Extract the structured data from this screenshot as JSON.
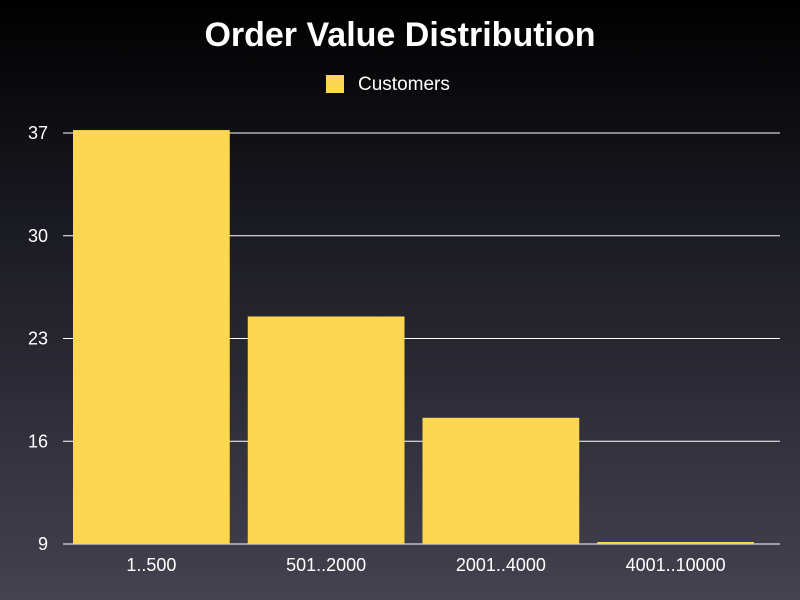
{
  "chart_data": {
    "type": "bar",
    "title": "Order Value Distribution",
    "categories": [
      "1..500",
      "501..2000",
      "2001..4000",
      "4001..10000"
    ],
    "series": [
      {
        "name": "Customers",
        "values": [
          37.2,
          24.5,
          17.6,
          9.1
        ]
      }
    ],
    "yticks": [
      "9",
      "16",
      "23",
      "30",
      "37"
    ],
    "ylim": [
      9,
      37
    ],
    "grid": true,
    "legend_position": "top-center",
    "colors": {
      "bar": "#fdd74f",
      "grid": "#ffffff",
      "text": "#ffffff",
      "background_top": "#000000",
      "background_bottom": "#44424f"
    }
  }
}
